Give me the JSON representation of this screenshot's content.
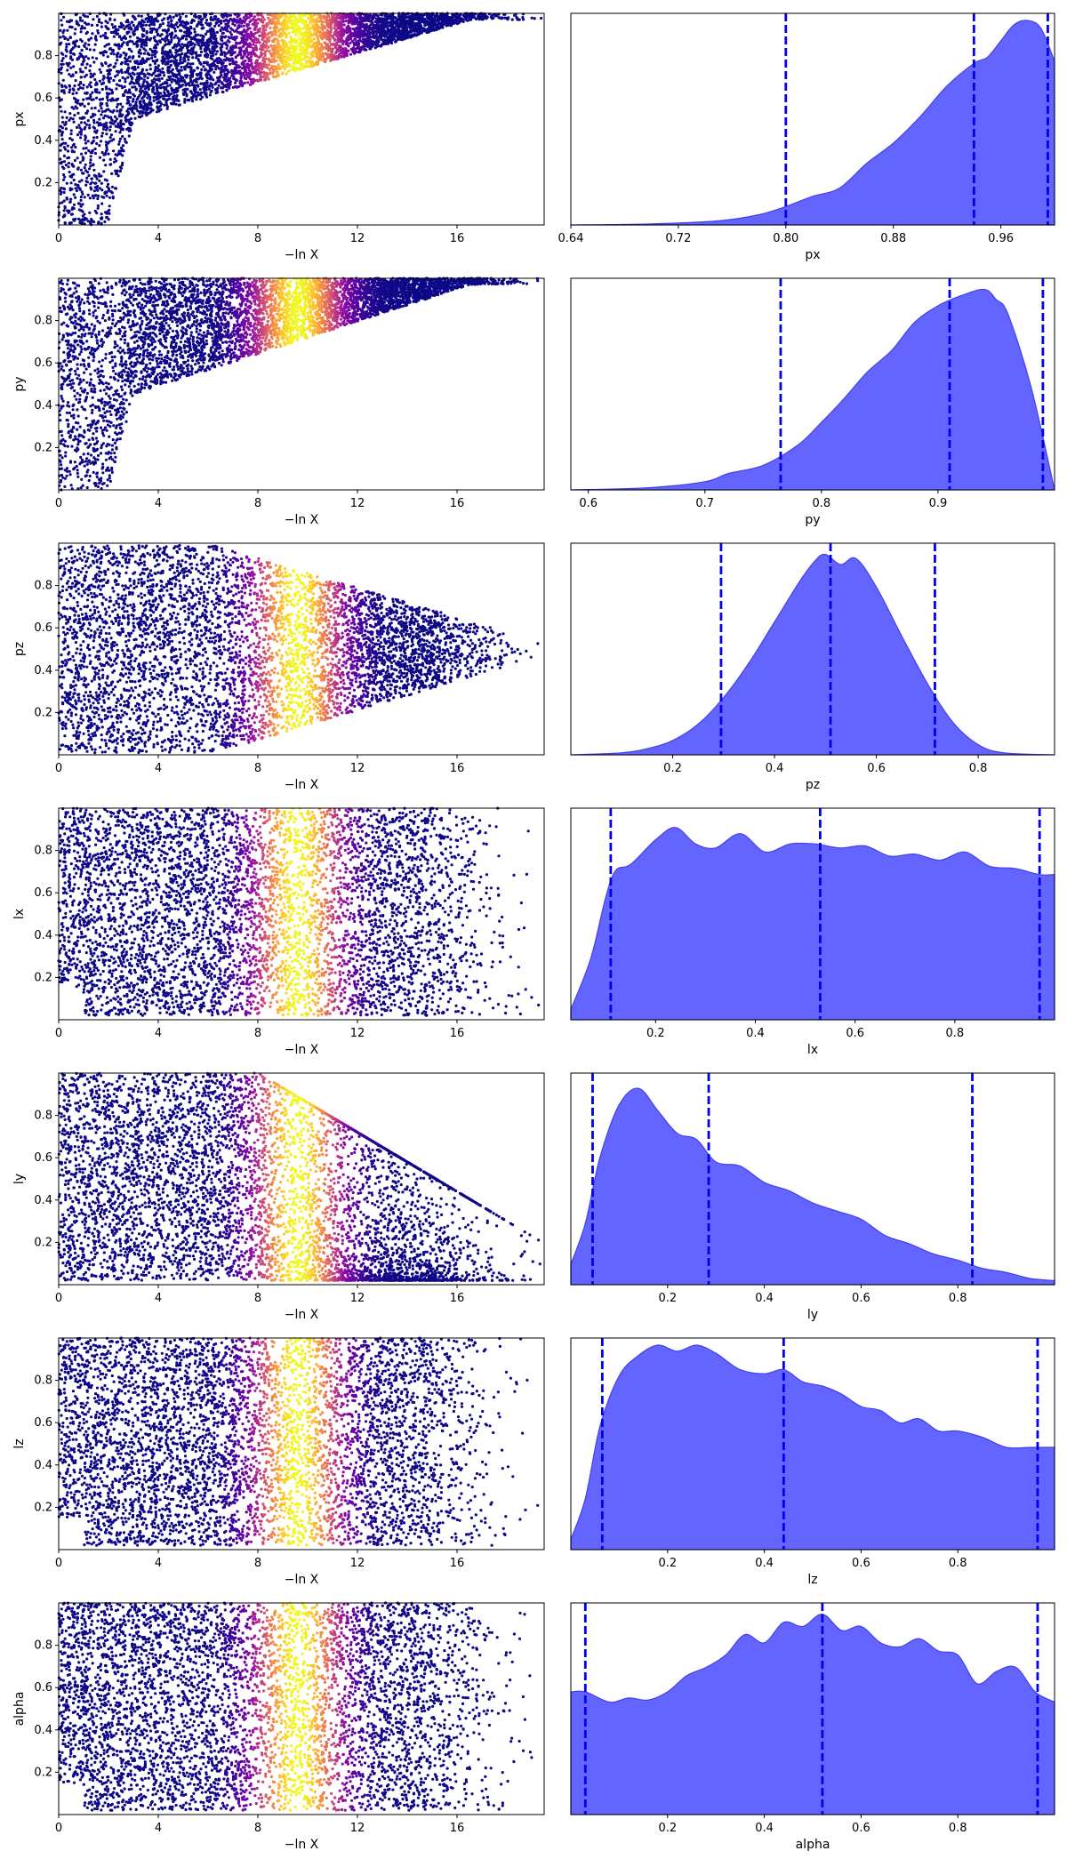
{
  "chart_data": [
    {
      "type": "scatter",
      "param": "px",
      "xlabel": "−ln X",
      "ylabel": "px",
      "xlim": [
        0,
        19.5
      ],
      "ylim": [
        0,
        1
      ],
      "xticks": [
        "0",
        "4",
        "8",
        "12",
        "16"
      ],
      "yticks": [
        "0.2",
        "0.4",
        "0.6",
        "0.8"
      ],
      "colormap": "plasma",
      "shape": "lower-bound-rising",
      "peak": 9.6,
      "width": 1.2,
      "bound": [
        3,
        0.5,
        16,
        0.95
      ]
    },
    {
      "type": "area",
      "param": "px",
      "xlabel": "px",
      "xlim": [
        0.64,
        1.0
      ],
      "xticks": [
        "0.64",
        "0.72",
        "0.80",
        "0.88",
        "0.96"
      ],
      "xtickvals": [
        0.64,
        0.72,
        0.8,
        0.88,
        0.96
      ],
      "quantiles": [
        0.8,
        0.94,
        0.995
      ],
      "x": [
        0.64,
        0.7,
        0.75,
        0.78,
        0.8,
        0.82,
        0.84,
        0.86,
        0.88,
        0.9,
        0.92,
        0.94,
        0.95,
        0.96,
        0.97,
        0.98,
        0.99,
        1.0
      ],
      "y": [
        0.0,
        0.005,
        0.02,
        0.05,
        0.09,
        0.14,
        0.18,
        0.3,
        0.4,
        0.53,
        0.68,
        0.79,
        0.82,
        0.9,
        0.98,
        1.0,
        0.96,
        0.8
      ]
    },
    {
      "type": "scatter",
      "param": "py",
      "xlabel": "−ln X",
      "ylabel": "py",
      "xlim": [
        0,
        19.5
      ],
      "ylim": [
        0,
        1
      ],
      "xticks": [
        "0",
        "4",
        "8",
        "12",
        "16"
      ],
      "yticks": [
        "0.2",
        "0.4",
        "0.6",
        "0.8"
      ],
      "colormap": "plasma",
      "shape": "lower-bound-rising",
      "peak": 9.6,
      "width": 1.2,
      "bound": [
        3,
        0.45,
        16,
        0.95
      ]
    },
    {
      "type": "area",
      "param": "py",
      "xlabel": "py",
      "xlim": [
        0.585,
        1.0
      ],
      "xticks": [
        "0.6",
        "0.7",
        "0.8",
        "0.9"
      ],
      "xtickvals": [
        0.6,
        0.7,
        0.8,
        0.9
      ],
      "quantiles": [
        0.765,
        0.91,
        0.99
      ],
      "x": [
        0.585,
        0.65,
        0.7,
        0.72,
        0.75,
        0.78,
        0.8,
        0.82,
        0.84,
        0.86,
        0.88,
        0.9,
        0.92,
        0.94,
        0.95,
        0.96,
        0.98,
        1.0
      ],
      "y": [
        0.0,
        0.01,
        0.04,
        0.08,
        0.12,
        0.22,
        0.33,
        0.45,
        0.58,
        0.68,
        0.82,
        0.9,
        0.95,
        0.98,
        0.93,
        0.86,
        0.5,
        0.0
      ]
    },
    {
      "type": "scatter",
      "param": "pz",
      "xlabel": "−ln X",
      "ylabel": "pz",
      "xlim": [
        0,
        19.5
      ],
      "ylim": [
        0,
        1
      ],
      "xticks": [
        "0",
        "4",
        "8",
        "12",
        "16"
      ],
      "yticks": [
        "0.2",
        "0.4",
        "0.6",
        "0.8"
      ],
      "colormap": "plasma",
      "shape": "funnel",
      "center": 0.5,
      "peak": 9.6,
      "width": 1.2
    },
    {
      "type": "area",
      "param": "pz",
      "xlabel": "pz",
      "xlim": [
        0.0,
        0.95
      ],
      "xticks": [
        "0.2",
        "0.4",
        "0.6",
        "0.8"
      ],
      "xtickvals": [
        0.2,
        0.4,
        0.6,
        0.8
      ],
      "quantiles": [
        0.295,
        0.51,
        0.715
      ],
      "x": [
        0.0,
        0.1,
        0.15,
        0.2,
        0.25,
        0.3,
        0.35,
        0.4,
        0.45,
        0.48,
        0.5,
        0.53,
        0.56,
        0.6,
        0.65,
        0.7,
        0.75,
        0.8,
        0.85,
        0.95
      ],
      "y": [
        0.0,
        0.01,
        0.03,
        0.07,
        0.15,
        0.28,
        0.45,
        0.65,
        0.85,
        0.95,
        0.98,
        0.93,
        0.96,
        0.82,
        0.58,
        0.35,
        0.16,
        0.05,
        0.01,
        0.0
      ]
    },
    {
      "type": "scatter",
      "param": "lx",
      "xlabel": "−ln X",
      "ylabel": "lx",
      "xlim": [
        0,
        19.5
      ],
      "ylim": [
        0,
        1
      ],
      "xticks": [
        "0",
        "4",
        "8",
        "12",
        "16"
      ],
      "yticks": [
        "0.2",
        "0.4",
        "0.6",
        "0.8"
      ],
      "colormap": "plasma",
      "shape": "uniform",
      "peak": 9.6,
      "width": 1.2
    },
    {
      "type": "area",
      "param": "lx",
      "xlabel": "lx",
      "xlim": [
        0.03,
        1.0
      ],
      "xticks": [
        "0.2",
        "0.4",
        "0.6",
        "0.8"
      ],
      "xtickvals": [
        0.2,
        0.4,
        0.6,
        0.8
      ],
      "quantiles": [
        0.11,
        0.53,
        0.97
      ],
      "x": [
        0.03,
        0.07,
        0.1,
        0.12,
        0.15,
        0.2,
        0.24,
        0.28,
        0.32,
        0.37,
        0.42,
        0.47,
        0.52,
        0.57,
        0.62,
        0.67,
        0.72,
        0.77,
        0.82,
        0.87,
        0.92,
        0.97,
        1.0
      ],
      "y": [
        0.05,
        0.3,
        0.6,
        0.73,
        0.76,
        0.88,
        0.94,
        0.86,
        0.84,
        0.91,
        0.82,
        0.86,
        0.86,
        0.84,
        0.85,
        0.8,
        0.81,
        0.78,
        0.82,
        0.75,
        0.74,
        0.71,
        0.71
      ]
    },
    {
      "type": "scatter",
      "param": "ly",
      "xlabel": "−ln X",
      "ylabel": "ly",
      "xlim": [
        0,
        19.5
      ],
      "ylim": [
        0,
        1
      ],
      "xticks": [
        "0",
        "4",
        "8",
        "12",
        "16"
      ],
      "yticks": [
        "0.2",
        "0.4",
        "0.6",
        "0.8"
      ],
      "colormap": "plasma",
      "shape": "decay",
      "peak": 9.6,
      "width": 1.2
    },
    {
      "type": "area",
      "param": "ly",
      "xlabel": "ly",
      "xlim": [
        0.0,
        1.0
      ],
      "xticks": [
        "0.2",
        "0.4",
        "0.6",
        "0.8"
      ],
      "xtickvals": [
        0.2,
        0.4,
        0.6,
        0.8
      ],
      "quantiles": [
        0.045,
        0.285,
        0.83
      ],
      "x": [
        0.0,
        0.03,
        0.06,
        0.1,
        0.14,
        0.18,
        0.22,
        0.26,
        0.3,
        0.35,
        0.4,
        0.45,
        0.5,
        0.55,
        0.6,
        0.65,
        0.7,
        0.75,
        0.8,
        0.85,
        0.9,
        0.95,
        1.0
      ],
      "y": [
        0.1,
        0.3,
        0.62,
        0.88,
        0.96,
        0.85,
        0.74,
        0.71,
        0.6,
        0.58,
        0.5,
        0.46,
        0.4,
        0.36,
        0.32,
        0.24,
        0.2,
        0.15,
        0.12,
        0.08,
        0.06,
        0.03,
        0.02
      ]
    },
    {
      "type": "scatter",
      "param": "lz",
      "xlabel": "−ln X",
      "ylabel": "lz",
      "xlim": [
        0,
        19.5
      ],
      "ylim": [
        0,
        1
      ],
      "xticks": [
        "0",
        "4",
        "8",
        "12",
        "16"
      ],
      "yticks": [
        "0.2",
        "0.4",
        "0.6",
        "0.8"
      ],
      "colormap": "plasma",
      "shape": "uniform",
      "peak": 9.6,
      "width": 1.2
    },
    {
      "type": "area",
      "param": "lz",
      "xlabel": "lz",
      "xlim": [
        0.0,
        1.0
      ],
      "xticks": [
        "0.2",
        "0.4",
        "0.6",
        "0.8"
      ],
      "xtickvals": [
        0.2,
        0.4,
        0.6,
        0.8
      ],
      "quantiles": [
        0.065,
        0.44,
        0.965
      ],
      "x": [
        0.0,
        0.03,
        0.06,
        0.1,
        0.14,
        0.18,
        0.22,
        0.26,
        0.3,
        0.35,
        0.4,
        0.44,
        0.48,
        0.52,
        0.56,
        0.6,
        0.64,
        0.68,
        0.72,
        0.76,
        0.8,
        0.85,
        0.9,
        0.95,
        1.0
      ],
      "y": [
        0.05,
        0.25,
        0.6,
        0.85,
        0.95,
        1.0,
        0.97,
        1.0,
        0.96,
        0.88,
        0.86,
        0.88,
        0.82,
        0.8,
        0.76,
        0.7,
        0.68,
        0.62,
        0.64,
        0.58,
        0.58,
        0.55,
        0.5,
        0.5,
        0.5
      ]
    },
    {
      "type": "scatter",
      "param": "alpha",
      "xlabel": "−ln X",
      "ylabel": "alpha",
      "xlim": [
        0,
        19.5
      ],
      "ylim": [
        0,
        1
      ],
      "xticks": [
        "0",
        "4",
        "8",
        "12",
        "16"
      ],
      "yticks": [
        "0.2",
        "0.4",
        "0.6",
        "0.8"
      ],
      "colormap": "plasma",
      "shape": "uniform",
      "peak": 9.6,
      "width": 1.2
    },
    {
      "type": "area",
      "param": "alpha",
      "xlabel": "alpha",
      "xlim": [
        0.0,
        1.0
      ],
      "xticks": [
        "0.2",
        "0.4",
        "0.6",
        "0.8"
      ],
      "xtickvals": [
        0.2,
        0.4,
        0.6,
        0.8
      ],
      "quantiles": [
        0.03,
        0.52,
        0.965
      ],
      "x": [
        0.0,
        0.03,
        0.08,
        0.12,
        0.16,
        0.2,
        0.24,
        0.28,
        0.32,
        0.36,
        0.4,
        0.44,
        0.48,
        0.52,
        0.56,
        0.6,
        0.64,
        0.68,
        0.72,
        0.76,
        0.8,
        0.84,
        0.88,
        0.92,
        0.96,
        1.0
      ],
      "y": [
        0.6,
        0.6,
        0.55,
        0.57,
        0.56,
        0.6,
        0.68,
        0.72,
        0.78,
        0.88,
        0.84,
        0.94,
        0.92,
        0.98,
        0.9,
        0.92,
        0.84,
        0.82,
        0.86,
        0.8,
        0.78,
        0.64,
        0.7,
        0.72,
        0.6,
        0.55
      ]
    }
  ],
  "colors": {
    "area_fill": "#6464ff",
    "area_edge": "#4040ee",
    "quantile_line": "#0000ee"
  }
}
